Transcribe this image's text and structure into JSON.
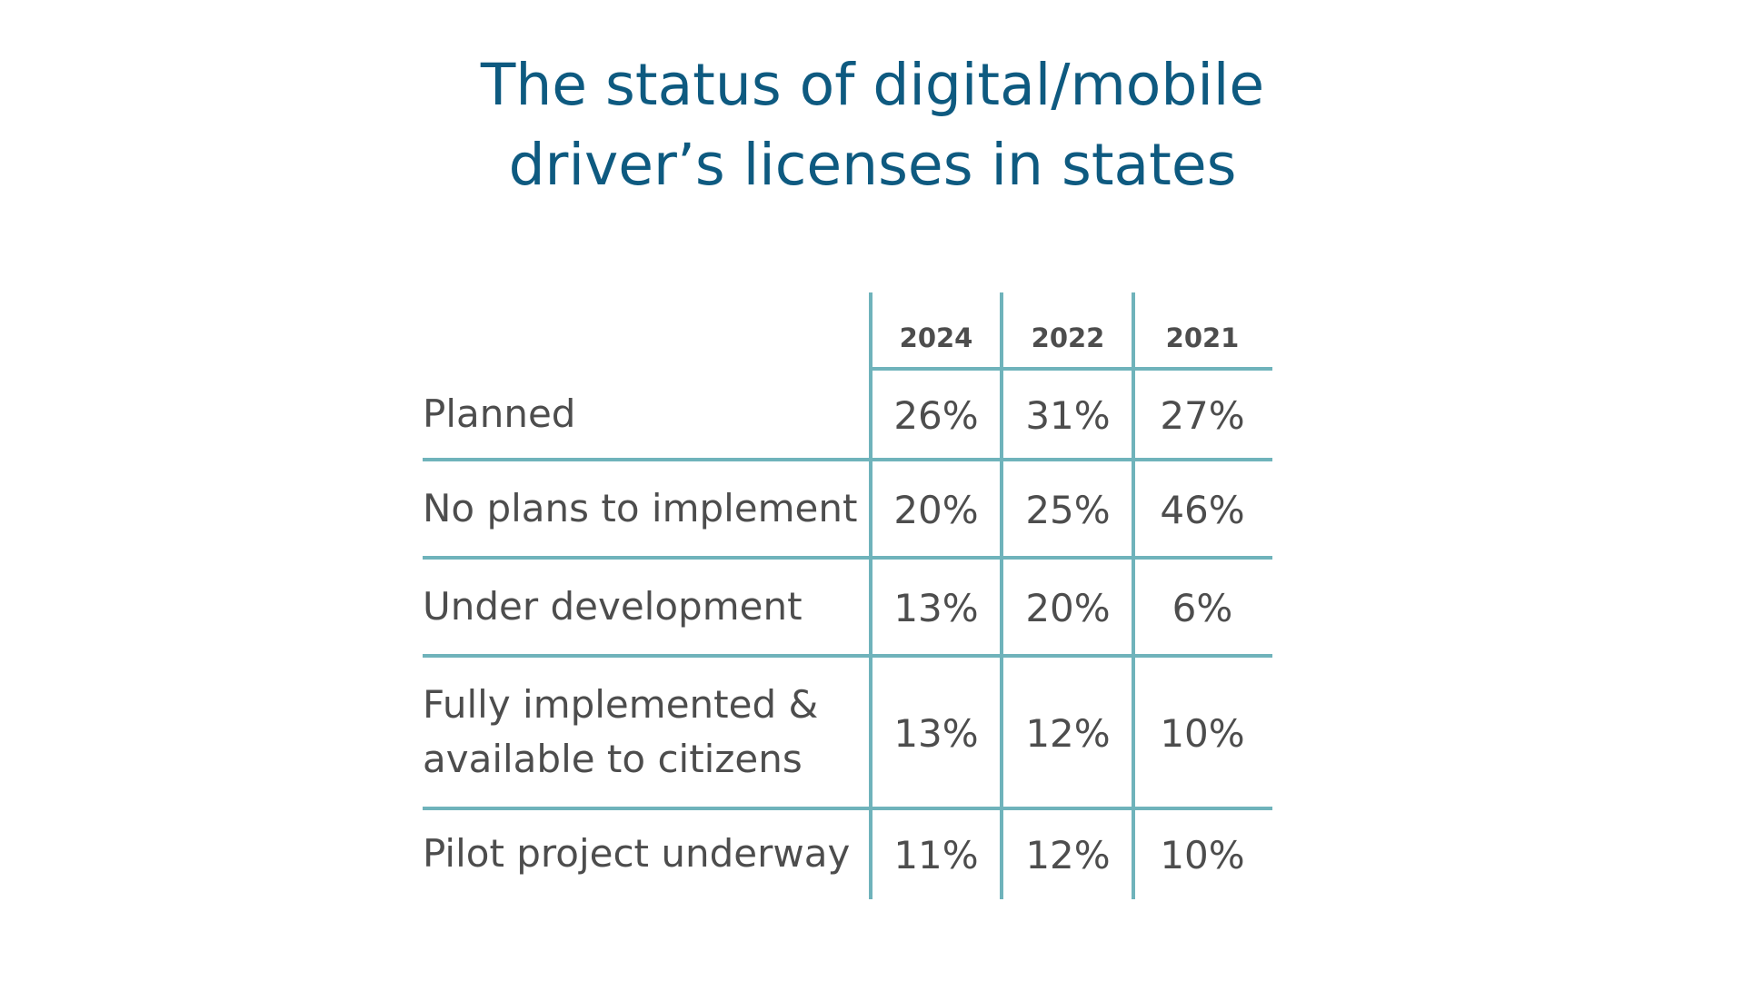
{
  "chart_data": {
    "type": "table",
    "title_lines": [
      "The status of digital/mobile",
      "driver’s licenses in states"
    ],
    "columns": [
      "2024",
      "2022",
      "2021"
    ],
    "rows": [
      {
        "label_lines": [
          "Planned"
        ],
        "values": [
          "26%",
          "31%",
          "27%"
        ]
      },
      {
        "label_lines": [
          "No plans to implement"
        ],
        "values": [
          "20%",
          "25%",
          "46%"
        ]
      },
      {
        "label_lines": [
          "Under development"
        ],
        "values": [
          "13%",
          "20%",
          "6%"
        ]
      },
      {
        "label_lines": [
          "Fully implemented &",
          "available to citizens"
        ],
        "values": [
          "13%",
          "12%",
          "10%"
        ]
      },
      {
        "label_lines": [
          "Pilot project underway"
        ],
        "values": [
          "11%",
          "12%",
          "10%"
        ]
      }
    ]
  },
  "colors": {
    "title": "#0e5a80",
    "grid": "#6fb3bb",
    "text": "#4d4d4d"
  }
}
